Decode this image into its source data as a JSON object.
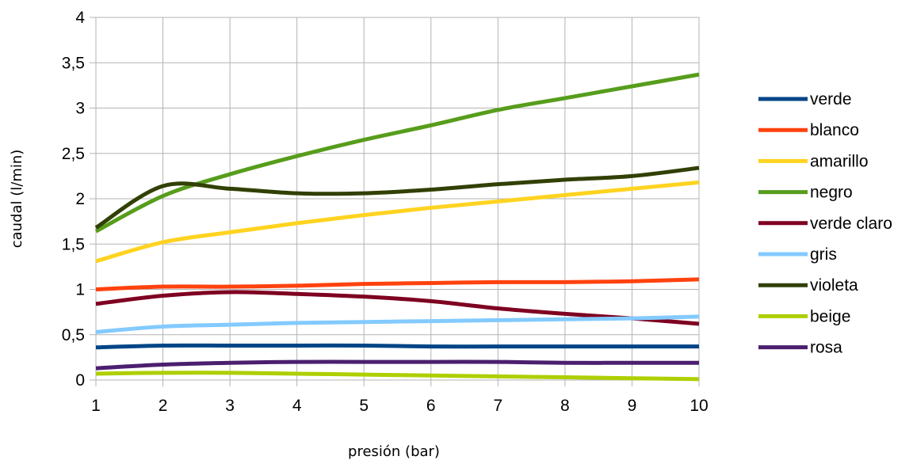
{
  "chart_data": {
    "type": "line",
    "xlabel": "presión (bar)",
    "ylabel": "caudal (l/min)",
    "xlim": [
      1,
      10
    ],
    "ylim": [
      0,
      4
    ],
    "x_ticks": [
      "1",
      "2",
      "3",
      "4",
      "5",
      "6",
      "7",
      "8",
      "9",
      "10"
    ],
    "y_ticks": [
      "0",
      "0,5",
      "1",
      "1,5",
      "2",
      "2,5",
      "3",
      "3,5",
      "4"
    ],
    "grid": true,
    "legend_position": "right",
    "x": [
      1,
      2,
      3,
      4,
      5,
      6,
      7,
      8,
      9,
      10
    ],
    "series": [
      {
        "name": "verde",
        "color": "#004586",
        "values": [
          0.36,
          0.38,
          0.38,
          0.38,
          0.38,
          0.37,
          0.37,
          0.37,
          0.37,
          0.37
        ]
      },
      {
        "name": "blanco",
        "color": "#ff420e",
        "values": [
          1.0,
          1.03,
          1.03,
          1.04,
          1.06,
          1.07,
          1.08,
          1.08,
          1.09,
          1.11
        ]
      },
      {
        "name": "amarillo",
        "color": "#ffd320",
        "values": [
          1.31,
          1.52,
          1.63,
          1.73,
          1.82,
          1.9,
          1.97,
          2.04,
          2.11,
          2.18
        ]
      },
      {
        "name": "negro",
        "color": "#579d1c",
        "values": [
          1.64,
          2.03,
          2.27,
          2.47,
          2.65,
          2.81,
          2.98,
          3.11,
          3.24,
          3.37
        ]
      },
      {
        "name": "verde claro",
        "color": "#7e0021",
        "values": [
          0.84,
          0.93,
          0.97,
          0.95,
          0.92,
          0.87,
          0.79,
          0.73,
          0.68,
          0.62
        ]
      },
      {
        "name": "gris",
        "color": "#83caff",
        "values": [
          0.53,
          0.59,
          0.61,
          0.63,
          0.64,
          0.65,
          0.66,
          0.67,
          0.68,
          0.7
        ]
      },
      {
        "name": "violeta",
        "color": "#314004",
        "values": [
          1.68,
          2.14,
          2.11,
          2.06,
          2.06,
          2.1,
          2.16,
          2.21,
          2.25,
          2.34
        ]
      },
      {
        "name": "beige",
        "color": "#aecf00",
        "values": [
          0.07,
          0.08,
          0.08,
          0.07,
          0.06,
          0.05,
          0.04,
          0.03,
          0.02,
          0.01
        ]
      },
      {
        "name": "rosa",
        "color": "#4b1f6f",
        "values": [
          0.13,
          0.17,
          0.19,
          0.2,
          0.2,
          0.2,
          0.2,
          0.19,
          0.19,
          0.19
        ]
      }
    ]
  }
}
